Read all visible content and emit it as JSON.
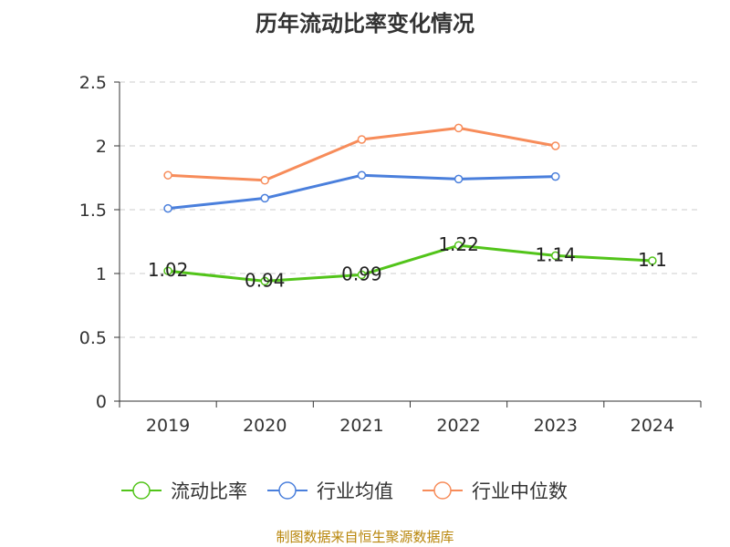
{
  "title": "历年流动比率变化情况",
  "footer": "制图数据来自恒生聚源数据库",
  "chart_data": {
    "type": "line",
    "title": "历年流动比率变化情况",
    "categories": [
      "2019",
      "2020",
      "2021",
      "2022",
      "2023",
      "2024"
    ],
    "ylim": [
      0,
      2.5
    ],
    "yticks": [
      "0",
      "0.5",
      "1",
      "1.5",
      "2",
      "2.5"
    ],
    "grid": true,
    "legend_position": "bottom",
    "series": [
      {
        "name": "流动比率",
        "color": "#52c41a",
        "values": [
          1.02,
          0.94,
          0.99,
          1.22,
          1.14,
          1.1
        ],
        "labels": [
          "1.02",
          "0.94",
          "0.99",
          "1.22",
          "1.14",
          "1.1"
        ]
      },
      {
        "name": "行业均值",
        "color": "#4a7fdc",
        "values": [
          1.51,
          1.59,
          1.77,
          1.74,
          1.76,
          null
        ]
      },
      {
        "name": "行业中位数",
        "color": "#f78c5a",
        "values": [
          1.77,
          1.73,
          2.05,
          2.14,
          2.0,
          null
        ]
      }
    ]
  }
}
